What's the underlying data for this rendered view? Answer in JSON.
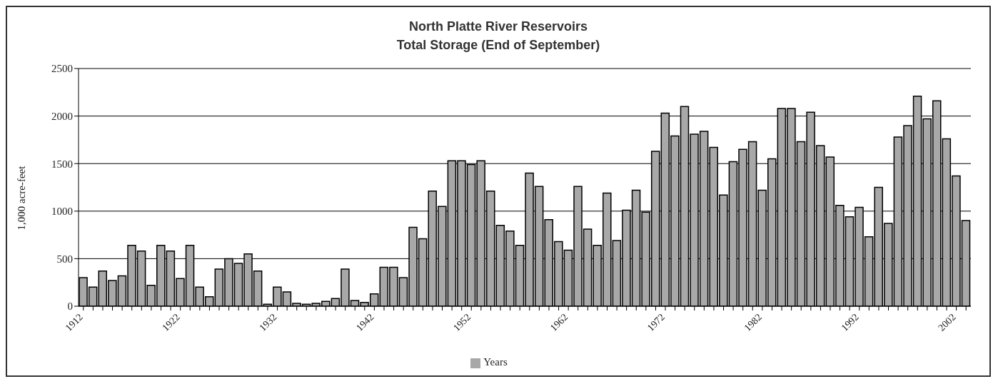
{
  "chart_data": {
    "type": "bar",
    "title": "North Platte River Reservoirs",
    "subtitle": "Total Storage (End of September)",
    "ylabel": "1,000 acre-feet",
    "categories": [
      "1912",
      null,
      null,
      null,
      null,
      null,
      null,
      null,
      null,
      null,
      "1922",
      null,
      null,
      null,
      null,
      null,
      null,
      null,
      null,
      null,
      "1932",
      null,
      null,
      null,
      null,
      null,
      null,
      null,
      null,
      null,
      "1942",
      null,
      null,
      null,
      null,
      null,
      null,
      null,
      null,
      null,
      "1952",
      null,
      null,
      null,
      null,
      null,
      null,
      null,
      null,
      null,
      "1962",
      null,
      null,
      null,
      null,
      null,
      null,
      null,
      null,
      null,
      "1972",
      null,
      null,
      null,
      null,
      null,
      null,
      null,
      null,
      null,
      "1982",
      null,
      null,
      null,
      null,
      null,
      null,
      null,
      null,
      null,
      "1992",
      null,
      null,
      null,
      null,
      null,
      null,
      null,
      null,
      null,
      "2002",
      null
    ],
    "series": [
      {
        "name": "Years",
        "color": "#a8a8a8",
        "values": [
          300,
          200,
          370,
          270,
          320,
          640,
          580,
          220,
          640,
          580,
          290,
          640,
          200,
          100,
          390,
          500,
          450,
          550,
          370,
          20,
          200,
          150,
          30,
          20,
          30,
          50,
          80,
          390,
          60,
          40,
          130,
          410,
          410,
          300,
          830,
          710,
          1210,
          1050,
          1530,
          1530,
          1490,
          1530,
          1210,
          850,
          790,
          640,
          1400,
          1260,
          910,
          680,
          590,
          1260,
          810,
          640,
          1190,
          690,
          1010,
          1220,
          990,
          1630,
          2030,
          1790,
          2100,
          1810,
          1840,
          1670,
          1170,
          1520,
          1650,
          1730,
          1220,
          1550,
          2080,
          2080,
          1730,
          2040,
          1690,
          1570,
          1060,
          940,
          1040,
          730,
          1250,
          870,
          1780,
          1900,
          2210,
          1970,
          2160,
          1760,
          1370,
          900
        ]
      }
    ],
    "ylim": [
      0,
      2500
    ],
    "yticks": [
      0,
      500,
      1000,
      1500,
      2000,
      2500
    ],
    "grid": "y",
    "legend": "bottom"
  }
}
